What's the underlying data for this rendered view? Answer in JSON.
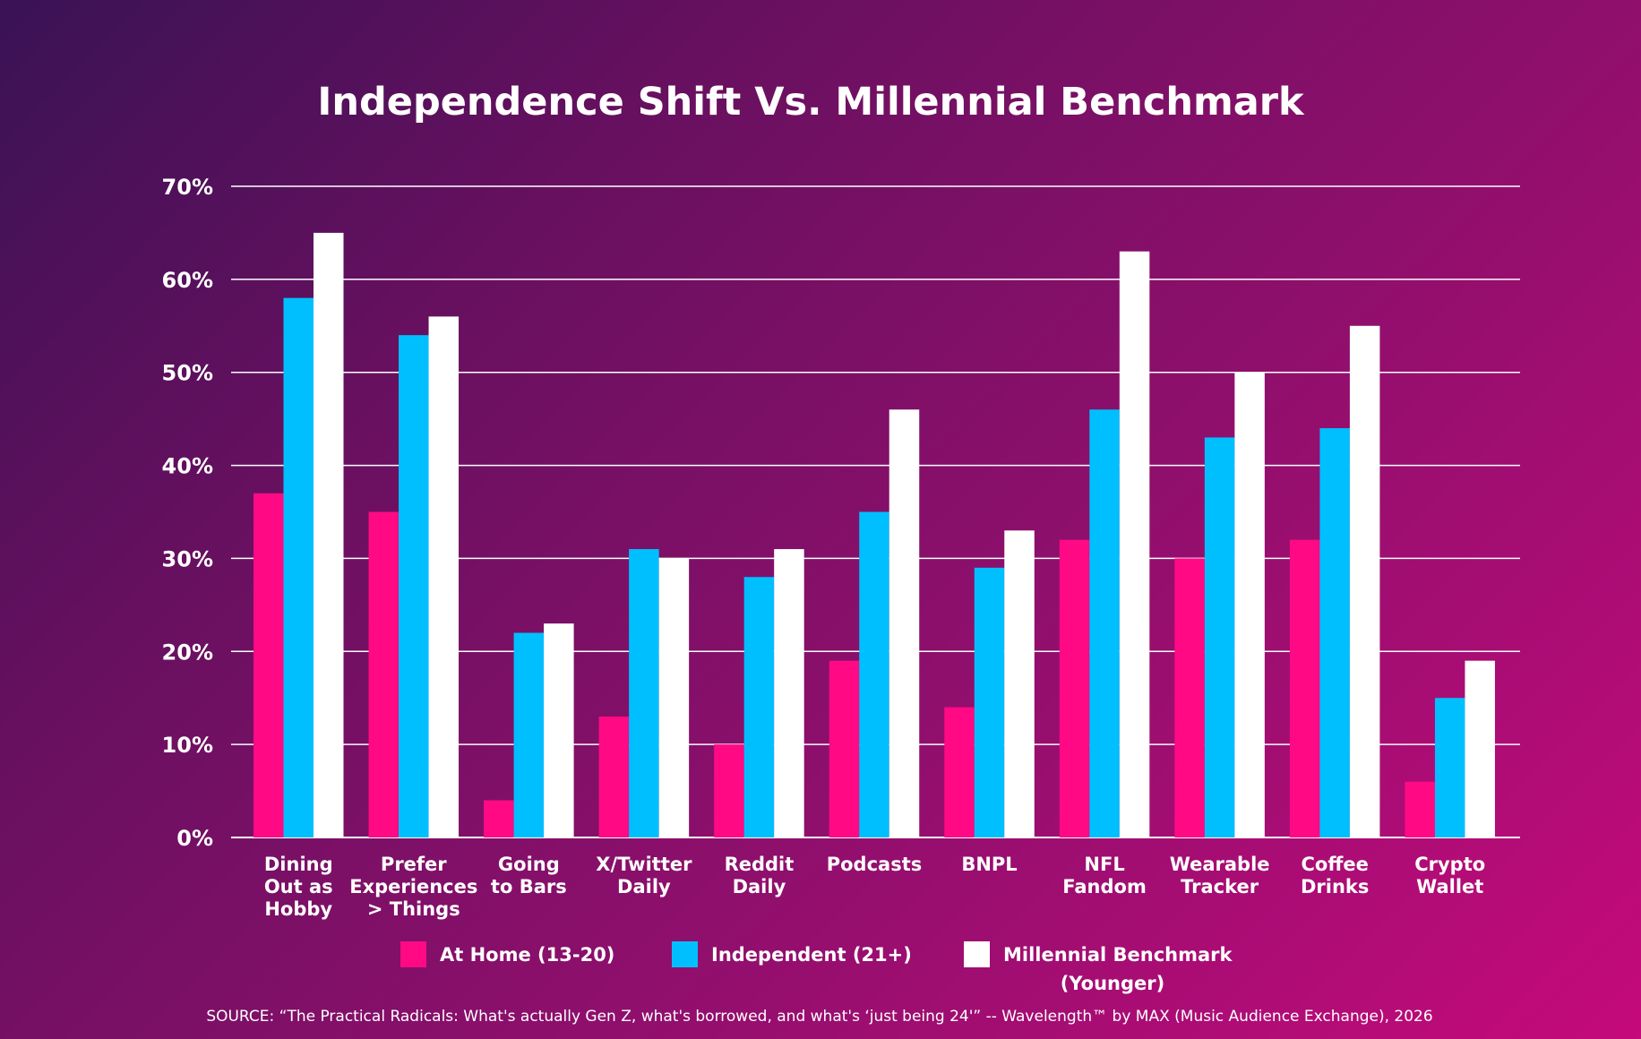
{
  "chart_data": {
    "type": "bar",
    "title": "Independence Shift Vs. Millennial Benchmark",
    "xlabel": "",
    "ylabel": "",
    "ylim": [
      0,
      70
    ],
    "y_ticks": [
      "0%",
      "10%",
      "20%",
      "30%",
      "40%",
      "50%",
      "60%",
      "70%"
    ],
    "y_tick_values": [
      0,
      10,
      20,
      30,
      40,
      50,
      60,
      70
    ],
    "grid": true,
    "legend_position": "bottom",
    "categories": [
      [
        "Dining",
        "Out as",
        "Hobby"
      ],
      [
        "Prefer",
        "Experiences",
        "> Things"
      ],
      [
        "Going",
        "to Bars"
      ],
      [
        "X/Twitter",
        "Daily"
      ],
      [
        "Reddit",
        "Daily"
      ],
      [
        "Podcasts"
      ],
      [
        "BNPL"
      ],
      [
        "NFL",
        "Fandom"
      ],
      [
        "Wearable",
        "Tracker"
      ],
      [
        "Coffee",
        "Drinks"
      ],
      [
        "Crypto",
        "Wallet"
      ]
    ],
    "series": [
      {
        "name": "At Home (13-20)",
        "name_lines": [
          "At Home (13-20)"
        ],
        "color": "#ff0a84",
        "values": [
          37,
          35,
          4,
          13,
          10,
          19,
          14,
          32,
          30,
          32,
          6
        ]
      },
      {
        "name": "Independent (21+)",
        "name_lines": [
          "Independent (21+)"
        ],
        "color": "#00bfff",
        "values": [
          58,
          54,
          22,
          31,
          28,
          35,
          29,
          46,
          43,
          44,
          15
        ]
      },
      {
        "name": "Millennial Benchmark (Younger)",
        "name_lines": [
          "Millennial Benchmark",
          "(Younger)"
        ],
        "color": "#ffffff",
        "values": [
          65,
          56,
          23,
          30,
          31,
          46,
          33,
          63,
          50,
          55,
          19
        ]
      }
    ],
    "source": "SOURCE:  “The Practical Radicals: What's actually Gen Z, what's borrowed, and what's ‘just being 24'” -- Wavelength™ by MAX (Music Audience Exchange), 2026"
  }
}
